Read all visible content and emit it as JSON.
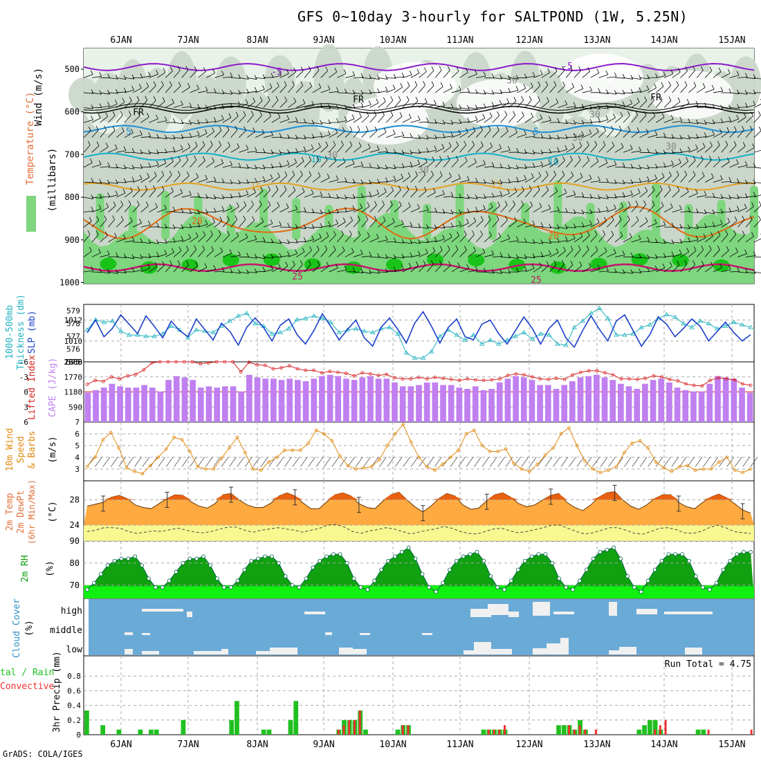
{
  "title": "GFS 0~10day 3-hourly for SALTPOND (1W, 5.25N)",
  "credit": "GrADS: COLA/IGES",
  "colors": {
    "rh_light": "#e9f2e9",
    "rh_mid": "#c9d6c9",
    "rh_green": "#7ed67e",
    "rh_dark": "#19c319",
    "temp_purple": "#8a19c8",
    "temp_black": "#000000",
    "temp_blue": "#1f8fd6",
    "temp_cyan": "#12b0c8",
    "temp_orange1": "#e3a020",
    "temp_orange2": "#e06a10",
    "temp_magenta": "#c8126e",
    "slp": "#1a3fc8",
    "thickness": "#20b2c0",
    "cape": "#c080f0",
    "li": "#d82020",
    "wind_speed": "#e08a10",
    "temp_fill_hi": "#e86010",
    "temp_fill": "#ffaa40",
    "dew_fill": "#f8f890",
    "rh2m_dark": "#10a010",
    "rh2m_light": "#10f010",
    "cloud_bg": "#6aaad6",
    "cloud_fill": "#f0f0f0",
    "precip_total": "#20c020",
    "precip_conv": "#f03030"
  },
  "time_axis": [
    "6JAN",
    "7JAN",
    "8JAN",
    "9JAN",
    "10JAN",
    "11JAN",
    "12JAN",
    "13JAN",
    "14JAN",
    "15JAN"
  ],
  "panels": {
    "upper": {
      "ylabel_wind": "Wind (m/s)",
      "ylabel_temp": "Temperature (°C)",
      "ylabel_rh": "RH (%)",
      "ylabel_press": "(millibars)",
      "levels": [
        "500",
        "600",
        "700",
        "800",
        "900",
        "1000"
      ],
      "contour_labels": [
        "-5",
        "-5",
        "FR",
        "FR",
        "FR",
        "5",
        "5",
        "10",
        "10",
        "15",
        "15",
        "20",
        "20",
        "25",
        "25",
        "30",
        "30",
        "30",
        "30",
        "30",
        "30"
      ]
    },
    "slp": {
      "ylabel_a": "1000-500mb",
      "ylabel_b": "Thickness (dm)",
      "ylabel_c": "SLP (mb)",
      "ticks_left": [
        "579",
        "578",
        "577",
        "576",
        "575"
      ],
      "ticks_right": [
        "1012",
        "1010",
        "1008"
      ]
    },
    "cape": {
      "ylabel_a": "Lifted Index",
      "ylabel_b": "CAPE (J/kg)",
      "ticks_left": [
        "-6",
        "-3",
        "0",
        "3",
        "6"
      ],
      "ticks_right": [
        "2360",
        "1770",
        "1180",
        "590"
      ]
    },
    "wind10": {
      "ylabel_a": "10m Wind",
      "ylabel_b": "Speed",
      "ylabel_c": "& Barbs",
      "ylabel_d": "(m/s)",
      "ticks": [
        "7",
        "6",
        "5",
        "4",
        "3"
      ]
    },
    "temp2m": {
      "ylabel_a": "2m Temp",
      "ylabel_b": "2m DewPt",
      "ylabel_c": "(6hr Min/Max)",
      "ylabel_d": "(°C)",
      "ticks": [
        "28",
        "24"
      ]
    },
    "rh2m": {
      "ylabel_a": "2m RH",
      "ylabel_b": "(%)",
      "ticks": [
        "90",
        "80",
        "70"
      ]
    },
    "cloud": {
      "ylabel_a": "Cloud Cover",
      "ylabel_b": "(%)",
      "levels": [
        "high",
        "middle",
        "low"
      ]
    },
    "precip": {
      "ylabel_a": "tal / Rain",
      "ylabel_b": "Convective",
      "ylabel_c": "3hr Precip (mm)",
      "run_total": "Run Total = 4.75",
      "ticks": [
        "0.8",
        "0.6",
        "0.4",
        "0.2",
        "0"
      ]
    }
  },
  "chart_data": [
    {
      "type": "line",
      "title": "SLP (mb)",
      "series": [
        {
          "name": "SLP (mb)",
          "values": [
            1010.8,
            1012.0,
            1010.4,
            1011.2,
            1012.5,
            1011.6,
            1010.7,
            1012.4,
            1011.4,
            1010.3,
            1011.9,
            1011.0,
            1010.4,
            1012.1,
            1011.1,
            1010.1,
            1011.7,
            1010.9,
            1009.6,
            1011.3,
            1012.2,
            1011.3,
            1010.0,
            1011.5,
            1012.1,
            1010.6,
            1009.7,
            1011.0,
            1012.6,
            1011.4,
            1010.1,
            1011.1,
            1012.0,
            1010.3,
            1009.5,
            1011.3,
            1012.2,
            1011.1,
            1009.8,
            1011.7,
            1012.8,
            1011.4,
            1009.8,
            1011.3,
            1012.1,
            1010.4,
            1010.1,
            1011.6,
            1012.0,
            1010.7,
            1009.7,
            1011.0,
            1012.3,
            1011.2,
            1009.7,
            1011.2,
            1012.0,
            1010.3,
            1009.4,
            1011.0,
            1012.4,
            1011.1,
            1010.0,
            1011.9,
            1012.5,
            1011.0,
            1009.5,
            1010.6,
            1012.3,
            1011.6,
            1010.4,
            1011.2,
            1012.1,
            1011.4,
            1010.0,
            1010.9,
            1011.8,
            1010.8,
            1010.0,
            1010.6
          ]
        },
        {
          "name": "1000-500mb Thickness (dm)",
          "values": [
            577.5,
            578.3,
            578.1,
            578.2,
            577.4,
            577.1,
            577.1,
            577.0,
            577.0,
            577.2,
            577.8,
            577.5,
            576.9,
            577.5,
            577.4,
            577.3,
            577.8,
            578.2,
            578.6,
            578.8,
            578.0,
            577.8,
            577.2,
            577.3,
            577.6,
            578.3,
            578.4,
            578.6,
            578.4,
            578.1,
            577.3,
            577.5,
            577.6,
            577.4,
            577.3,
            577.6,
            577.7,
            577.2,
            575.7,
            575.3,
            575.3,
            575.8,
            577.0,
            577.5,
            577.1,
            576.7,
            577.1,
            576.4,
            576.7,
            576.4,
            576.7,
            577.0,
            577.3,
            576.8,
            577.2,
            577.1,
            576.4,
            576.3,
            577.7,
            578.2,
            578.8,
            579.2,
            578.4,
            577.1,
            577.1,
            577.2,
            577.7,
            577.9,
            578.4,
            578.7,
            578.5,
            578.0,
            577.7,
            578.2,
            578.0,
            577.6,
            577.8,
            578.1,
            577.9,
            577.7
          ]
        }
      ],
      "ylim_left": [
        575,
        579.5
      ],
      "ylim_right": [
        1008,
        1013.5
      ]
    },
    {
      "type": "bar",
      "title": "CAPE (J/kg)",
      "values": [
        1150,
        1250,
        1350,
        1500,
        1400,
        1350,
        1350,
        1450,
        1350,
        1200,
        1650,
        1800,
        1750,
        1650,
        1350,
        1400,
        1350,
        1400,
        1400,
        1200,
        1850,
        1750,
        1700,
        1700,
        1650,
        1700,
        1650,
        1600,
        1700,
        1800,
        1850,
        1800,
        1700,
        1650,
        1750,
        1800,
        1700,
        1700,
        1550,
        1400,
        1400,
        1450,
        1550,
        1550,
        1450,
        1450,
        1350,
        1300,
        1400,
        1250,
        1300,
        1550,
        1700,
        1800,
        1750,
        1650,
        1450,
        1450,
        1300,
        1450,
        1600,
        1750,
        1800,
        1850,
        1750,
        1650,
        1500,
        1400,
        1300,
        1500,
        1650,
        1700,
        1550,
        1350,
        1250,
        1200,
        1200,
        1500,
        1800,
        1750,
        1700,
        1350,
        1150
      ],
      "series": [
        {
          "name": "Lifted Index",
          "values": [
            -1.5,
            -2.3,
            -2.1,
            -3.0,
            -2.6,
            -3.2,
            -3.5,
            -4.4,
            -5.8,
            -6.2,
            -6.5,
            -6.6,
            -6.8,
            -6.0,
            -5.6,
            -5.8,
            -6.3,
            -6.0,
            -6.1,
            -4.0,
            -5.9,
            -5.4,
            -5.3,
            -4.6,
            -4.8,
            -5.2,
            -4.6,
            -4.3,
            -4.3,
            -3.8,
            -4.1,
            -3.9,
            -3.7,
            -3.2,
            -3.8,
            -3.6,
            -3.3,
            -3.5,
            -2.8,
            -2.6,
            -2.6,
            -2.9,
            -2.6,
            -2.9,
            -2.7,
            -2.5,
            -2.3,
            -2.6,
            -2.4,
            -2.3,
            -2.4,
            -2.6,
            -3.3,
            -3.6,
            -3.4,
            -3.0,
            -2.6,
            -2.5,
            -2.7,
            -2.5,
            -3.4,
            -3.9,
            -4.2,
            -4.2,
            -3.8,
            -3.4,
            -2.6,
            -2.6,
            -2.5,
            -2.7,
            -3.2,
            -3.0,
            -2.5,
            -2.2,
            -1.6,
            -1.3,
            -1.2,
            -2.3,
            -2.8,
            -2.6,
            -2.4,
            -1.6,
            -1.3
          ]
        }
      ],
      "ylim_left": [
        6,
        -6
      ],
      "ylim_right": [
        0,
        2360
      ]
    },
    {
      "type": "line",
      "title": "10m Wind Speed",
      "values": [
        3.2,
        4.0,
        5.5,
        6.1,
        4.8,
        3.1,
        2.8,
        2.6,
        3.3,
        4.0,
        4.7,
        5.7,
        5.5,
        4.5,
        3.2,
        3.0,
        3.0,
        3.9,
        4.8,
        5.7,
        4.4,
        3.0,
        2.9,
        3.6,
        4.0,
        4.6,
        4.6,
        4.6,
        5.2,
        6.3,
        6.0,
        5.4,
        4.1,
        3.3,
        3.0,
        3.1,
        3.2,
        3.8,
        5.0,
        6.0,
        6.8,
        5.3,
        4.0,
        3.2,
        2.9,
        3.4,
        4.0,
        4.6,
        6.0,
        6.3,
        5.0,
        4.5,
        4.5,
        4.7,
        3.5,
        3.0,
        2.8,
        3.4,
        4.2,
        4.8,
        6.0,
        6.5,
        5.0,
        3.7,
        3.0,
        2.7,
        2.9,
        3.2,
        4.4,
        5.2,
        5.4,
        4.8,
        3.6,
        3.1,
        2.8,
        3.2,
        3.3,
        2.9,
        3.0,
        3.0,
        3.6,
        4.0,
        2.9,
        2.7,
        3.0
      ],
      "ylim": [
        2,
        7
      ]
    },
    {
      "type": "area",
      "title": "2m Temp",
      "series": [
        {
          "name": "2m Temp",
          "values": [
            27.0,
            27.3,
            27.6,
            28.4,
            28.7,
            28.2,
            27.2,
            26.8,
            26.6,
            27.4,
            28.2,
            28.8,
            28.7,
            27.7,
            27.0,
            26.7,
            27.4,
            28.8,
            29.0,
            28.0,
            27.2,
            26.8,
            26.8,
            27.5,
            28.6,
            29.1,
            28.6,
            27.5,
            26.6,
            26.6,
            27.7,
            28.8,
            29.1,
            28.6,
            27.4,
            26.8,
            26.6,
            27.8,
            28.8,
            29.2,
            28.0,
            26.9,
            26.1,
            27.0,
            28.2,
            29.0,
            28.6,
            27.2,
            26.5,
            26.7,
            27.9,
            28.8,
            29.1,
            28.4,
            27.4,
            26.9,
            27.2,
            28.0,
            28.7,
            29.0,
            27.6,
            26.8,
            26.3,
            27.2,
            28.4,
            29.1,
            29.3,
            28.0,
            27.0,
            26.5,
            27.2,
            28.2,
            28.8,
            28.8,
            27.6,
            26.9,
            26.6,
            27.6,
            28.4,
            28.9,
            28.3,
            27.4,
            26.4,
            25.9
          ]
        },
        {
          "name": "2m DewPt",
          "values": [
            23.0,
            23.2,
            23.6,
            23.6,
            23.5,
            23.0,
            22.7,
            22.9,
            23.1,
            23.0,
            23.3,
            23.5,
            23.2,
            22.9,
            22.8,
            23.0,
            23.4,
            23.7,
            23.7,
            23.2,
            22.9,
            23.2,
            23.4,
            23.6,
            23.4,
            23.2,
            22.9,
            23.2,
            23.5,
            24.0,
            24.1,
            23.7,
            23.0,
            22.7,
            23.1,
            23.3,
            23.6,
            23.4,
            23.0,
            22.6,
            22.9,
            23.2,
            23.4,
            23.8,
            23.5,
            23.0,
            22.7,
            22.6,
            23.0,
            23.4,
            23.5,
            23.1,
            22.8,
            23.0,
            23.3,
            23.6,
            24.0,
            24.0,
            23.5,
            23.0,
            22.6,
            22.8,
            23.2,
            23.6,
            23.6,
            23.2,
            22.7,
            22.6,
            23.0,
            23.5,
            23.6,
            23.3,
            22.8,
            22.7,
            23.0,
            23.6,
            24.0,
            23.6,
            23.0,
            22.8,
            22.7
          ]
        }
      ],
      "ylim": [
        21.5,
        31
      ]
    },
    {
      "type": "area",
      "title": "2m RH",
      "values": [
        68,
        71,
        75,
        79,
        81,
        82,
        82,
        83,
        79,
        73,
        69,
        69,
        72,
        76,
        80,
        82,
        82,
        83,
        79,
        73,
        69,
        69,
        72,
        77,
        81,
        82,
        83,
        83,
        80,
        74,
        70,
        69,
        73,
        78,
        81,
        83,
        84,
        84,
        80,
        73,
        69,
        68,
        72,
        77,
        81,
        83,
        85,
        87,
        82,
        75,
        69,
        67,
        71,
        77,
        81,
        83,
        84,
        85,
        81,
        74,
        69,
        68,
        72,
        77,
        81,
        83,
        84,
        84,
        80,
        73,
        69,
        68,
        72,
        77,
        82,
        85,
        86,
        87,
        82,
        74,
        69,
        67,
        72,
        77,
        81,
        84,
        84,
        84,
        81,
        74,
        69,
        68,
        71,
        77,
        81,
        84,
        85,
        85
      ],
      "ylim": [
        64,
        90
      ]
    },
    {
      "type": "bar",
      "title": "3hr Precip (mm)",
      "series": [
        {
          "name": "Total / Rain",
          "values": [
            0.33,
            0,
            0,
            0.13,
            0,
            0,
            0.07,
            0,
            0,
            0,
            0.07,
            0,
            0.07,
            0.07,
            0,
            0,
            0,
            0,
            0.2,
            0,
            0,
            0,
            0,
            0,
            0,
            0,
            0,
            0.2,
            0.46,
            0,
            0,
            0,
            0,
            0.07,
            0.07,
            0,
            0,
            0,
            0.2,
            0.46,
            0,
            0,
            0,
            0,
            0,
            0,
            0,
            0.07,
            0.2,
            0.2,
            0.2,
            0.33,
            0.07,
            0,
            0,
            0,
            0,
            0,
            0.07,
            0.13,
            0.13,
            0,
            0,
            0,
            0,
            0,
            0,
            0,
            0,
            0,
            0,
            0,
            0,
            0,
            0.07,
            0.07,
            0.07,
            0.07,
            0.07,
            0,
            0,
            0,
            0,
            0,
            0,
            0,
            0,
            0,
            0.13,
            0.13,
            0.13,
            0.07,
            0.2,
            0.07,
            0,
            0,
            0,
            0,
            0,
            0,
            0,
            0,
            0,
            0.07,
            0.13,
            0.2,
            0.2,
            0.07,
            0,
            0,
            0,
            0,
            0,
            0,
            0.07,
            0.07,
            0,
            0,
            0,
            0,
            0,
            0,
            0,
            0,
            0
          ]
        },
        {
          "name": "Convective",
          "values": [
            0,
            0,
            0,
            0,
            0,
            0,
            0,
            0,
            0,
            0,
            0,
            0,
            0,
            0,
            0,
            0,
            0,
            0,
            0,
            0,
            0,
            0,
            0,
            0,
            0,
            0,
            0,
            0,
            0,
            0,
            0,
            0,
            0,
            0,
            0,
            0,
            0,
            0,
            0,
            0,
            0,
            0,
            0,
            0,
            0,
            0,
            0,
            0.07,
            0.13,
            0.2,
            0.2,
            0.33,
            0,
            0,
            0,
            0,
            0,
            0,
            0,
            0.13,
            0.13,
            0,
            0,
            0,
            0,
            0,
            0,
            0,
            0,
            0,
            0,
            0,
            0,
            0,
            0,
            0.07,
            0.07,
            0.07,
            0.13,
            0,
            0,
            0,
            0,
            0,
            0,
            0,
            0,
            0,
            0,
            0,
            0.13,
            0.07,
            0.13,
            0.07,
            0,
            0.07,
            0,
            0,
            0,
            0,
            0,
            0,
            0,
            0,
            0,
            0,
            0.07,
            0.13,
            0.2,
            0,
            0,
            0,
            0,
            0,
            0,
            0,
            0.07,
            0,
            0,
            0,
            0,
            0,
            0,
            0,
            0.07,
            0
          ]
        }
      ],
      "ylim": [
        0,
        1
      ]
    }
  ]
}
